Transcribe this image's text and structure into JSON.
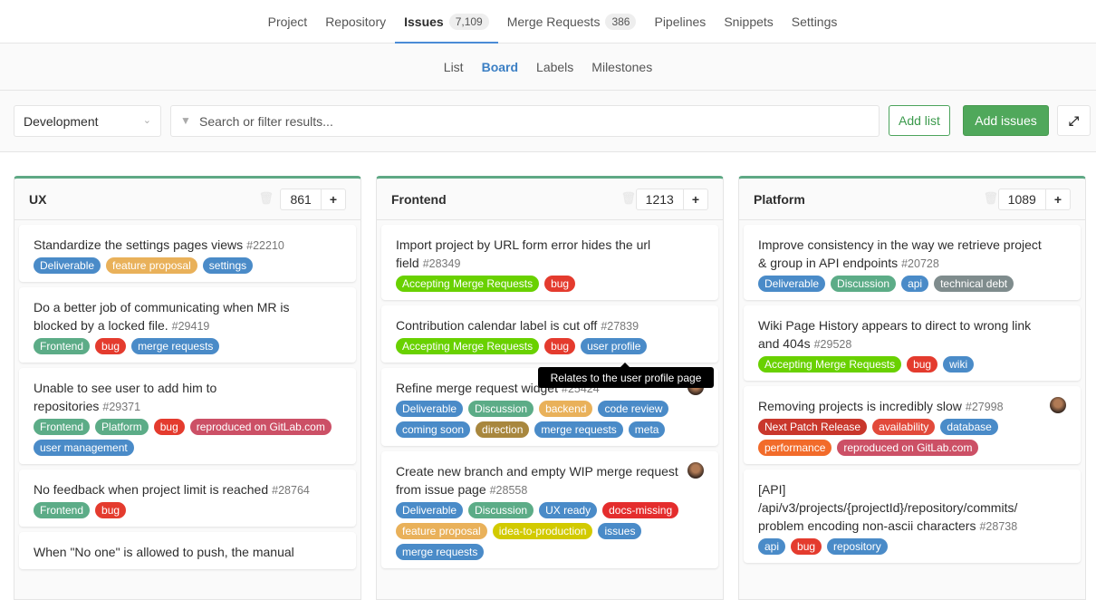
{
  "nav": {
    "tabs": [
      {
        "label": "Project"
      },
      {
        "label": "Repository"
      },
      {
        "label": "Issues",
        "count": "7,109",
        "active": true
      },
      {
        "label": "Merge Requests",
        "count": "386"
      },
      {
        "label": "Pipelines"
      },
      {
        "label": "Snippets"
      },
      {
        "label": "Settings"
      }
    ]
  },
  "subnav": {
    "items": [
      {
        "label": "List"
      },
      {
        "label": "Board",
        "active": true
      },
      {
        "label": "Labels"
      },
      {
        "label": "Milestones"
      }
    ]
  },
  "filter": {
    "board_select": "Development",
    "search_placeholder": "Search or filter results...",
    "add_list": "Add list",
    "add_issues": "Add issues"
  },
  "tooltip": "Relates to the user profile page",
  "columns": [
    {
      "title": "UX",
      "count": "861",
      "cards": [
        {
          "title": "Standardize the settings pages views",
          "ref": "#22210",
          "labels": [
            {
              "text": "Deliverable",
              "color": "#4a8bc8"
            },
            {
              "text": "feature proposal",
              "color": "#e9b15a"
            },
            {
              "text": "settings",
              "color": "#4a8bc8"
            }
          ]
        },
        {
          "title": "Do a better job of communicating when MR is blocked by a locked file.",
          "ref": "#29419",
          "labels": [
            {
              "text": "Frontend",
              "color": "#5cac87"
            },
            {
              "text": "bug",
              "color": "#e43b2e"
            },
            {
              "text": "merge requests",
              "color": "#4a8bc8"
            }
          ]
        },
        {
          "title": "Unable to see user to add him to repositories",
          "ref": "#29371",
          "labels": [
            {
              "text": "Frontend",
              "color": "#5cac87"
            },
            {
              "text": "Platform",
              "color": "#5cac87"
            },
            {
              "text": "bug",
              "color": "#e43b2e"
            },
            {
              "text": "reproduced on GitLab.com",
              "color": "#cc5066"
            },
            {
              "text": "user management",
              "color": "#4a8bc8"
            }
          ]
        },
        {
          "title": "No feedback when project limit is reached",
          "ref": "#28764",
          "labels": [
            {
              "text": "Frontend",
              "color": "#5cac87"
            },
            {
              "text": "bug",
              "color": "#e43b2e"
            }
          ]
        },
        {
          "title": "When \"No one\" is allowed to push, the manual",
          "ref": "",
          "labels": []
        }
      ]
    },
    {
      "title": "Frontend",
      "count": "1213",
      "cards": [
        {
          "title": "Import project by URL form error hides the url field",
          "ref": "#28349",
          "labels": [
            {
              "text": "Accepting Merge Requests",
              "color": "#69d100"
            },
            {
              "text": "bug",
              "color": "#e43b2e"
            }
          ]
        },
        {
          "title": "Contribution calendar label is cut off",
          "ref": "#27839",
          "labels": [
            {
              "text": "Accepting Merge Requests",
              "color": "#69d100"
            },
            {
              "text": "bug",
              "color": "#e43b2e"
            },
            {
              "text": "user profile",
              "color": "#4a8bc8"
            }
          ]
        },
        {
          "title": "Refine merge request widget",
          "ref": "#25424",
          "avatar": true,
          "labels": [
            {
              "text": "Deliverable",
              "color": "#4a8bc8"
            },
            {
              "text": "Discussion",
              "color": "#5cac87"
            },
            {
              "text": "backend",
              "color": "#e9b15a"
            },
            {
              "text": "code review",
              "color": "#4a8bc8"
            },
            {
              "text": "coming soon",
              "color": "#4a8bc8"
            },
            {
              "text": "direction",
              "color": "#a8873e"
            },
            {
              "text": "merge requests",
              "color": "#4a8bc8"
            },
            {
              "text": "meta",
              "color": "#4a8bc8"
            }
          ]
        },
        {
          "title": "Create new branch and empty WIP merge request from issue page",
          "ref": "#28558",
          "avatar": true,
          "labels": [
            {
              "text": "Deliverable",
              "color": "#4a8bc8"
            },
            {
              "text": "Discussion",
              "color": "#5cac87"
            },
            {
              "text": "UX ready",
              "color": "#4a8bc8"
            },
            {
              "text": "docs-missing",
              "color": "#e42d2d"
            },
            {
              "text": "feature proposal",
              "color": "#e9b15a"
            },
            {
              "text": "idea-to-production",
              "color": "#d2ca00"
            },
            {
              "text": "issues",
              "color": "#4a8bc8"
            },
            {
              "text": "merge requests",
              "color": "#4a8bc8"
            }
          ]
        }
      ]
    },
    {
      "title": "Platform",
      "count": "1089",
      "cards": [
        {
          "title": "Improve consistency in the way we retrieve project & group in API endpoints",
          "ref": "#20728",
          "labels": [
            {
              "text": "Deliverable",
              "color": "#4a8bc8"
            },
            {
              "text": "Discussion",
              "color": "#5cac87"
            },
            {
              "text": "api",
              "color": "#4a8bc8"
            },
            {
              "text": "technical debt",
              "color": "#7f8c8d"
            }
          ]
        },
        {
          "title": "Wiki Page History appears to direct to wrong link and 404s",
          "ref": "#29528",
          "labels": [
            {
              "text": "Accepting Merge Requests",
              "color": "#69d100"
            },
            {
              "text": "bug",
              "color": "#e43b2e"
            },
            {
              "text": "wiki",
              "color": "#4a8bc8"
            }
          ]
        },
        {
          "title": "Removing projects is incredibly slow",
          "ref": "#27998",
          "avatar": true,
          "labels": [
            {
              "text": "Next Patch Release",
              "color": "#c9372c"
            },
            {
              "text": "availability",
              "color": "#e24a3b"
            },
            {
              "text": "database",
              "color": "#4a8bc8"
            },
            {
              "text": "performance",
              "color": "#f26b2a"
            },
            {
              "text": "reproduced on GitLab.com",
              "color": "#cc5066"
            }
          ]
        },
        {
          "title": "[API] /api/v3/projects/{projectId}/repository/commits/ problem encoding non-ascii characters",
          "ref": "#28738",
          "labels": [
            {
              "text": "api",
              "color": "#4a8bc8"
            },
            {
              "text": "bug",
              "color": "#e43b2e"
            },
            {
              "text": "repository",
              "color": "#4a8bc8"
            }
          ]
        }
      ]
    }
  ]
}
